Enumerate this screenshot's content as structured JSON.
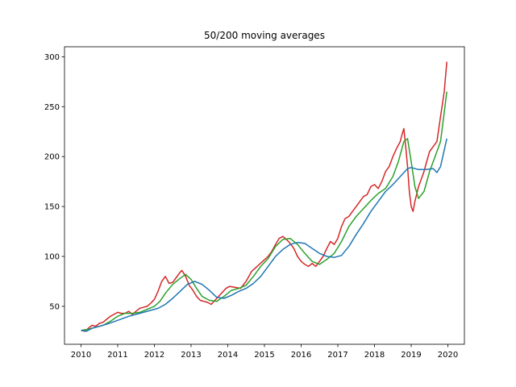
{
  "chart_data": {
    "type": "line",
    "title": "50/200 moving averages",
    "xlabel": "",
    "ylabel": "",
    "xlim": [
      2009.55,
      2020.45
    ],
    "ylim": [
      12,
      310
    ],
    "x_ticks": [
      2010,
      2011,
      2012,
      2013,
      2014,
      2015,
      2016,
      2017,
      2018,
      2019,
      2020
    ],
    "y_ticks": [
      50,
      100,
      150,
      200,
      250,
      300
    ],
    "grid": false,
    "legend": "none",
    "series": [
      {
        "color": "#d62728",
        "x": [
          2010.0,
          2010.1,
          2010.2,
          2010.3,
          2010.4,
          2010.5,
          2010.6,
          2010.7,
          2010.8,
          2010.9,
          2011.0,
          2011.1,
          2011.2,
          2011.3,
          2011.4,
          2011.5,
          2011.6,
          2011.7,
          2011.8,
          2011.9,
          2012.0,
          2012.1,
          2012.2,
          2012.3,
          2012.4,
          2012.5,
          2012.6,
          2012.7,
          2012.75,
          2012.85,
          2012.95,
          2013.05,
          2013.15,
          2013.25,
          2013.35,
          2013.45,
          2013.55,
          2013.65,
          2013.75,
          2013.85,
          2013.95,
          2014.05,
          2014.2,
          2014.35,
          2014.5,
          2014.65,
          2014.8,
          2014.95,
          2015.1,
          2015.2,
          2015.3,
          2015.4,
          2015.5,
          2015.6,
          2015.7,
          2015.8,
          2015.9,
          2016.0,
          2016.1,
          2016.2,
          2016.3,
          2016.4,
          2016.5,
          2016.6,
          2016.7,
          2016.8,
          2016.9,
          2017.0,
          2017.1,
          2017.2,
          2017.3,
          2017.4,
          2017.5,
          2017.6,
          2017.7,
          2017.8,
          2017.9,
          2018.0,
          2018.1,
          2018.2,
          2018.3,
          2018.4,
          2018.5,
          2018.6,
          2018.7,
          2018.75,
          2018.8,
          2018.85,
          2018.9,
          2018.95,
          2019.0,
          2019.05,
          2019.1,
          2019.2,
          2019.3,
          2019.35,
          2019.4,
          2019.5,
          2019.6,
          2019.7,
          2019.8,
          2019.9,
          2019.97
        ],
        "y": [
          26,
          25,
          28,
          31,
          30,
          33,
          34,
          37,
          40,
          42,
          44,
          43,
          43,
          45,
          42,
          45,
          48,
          49,
          50,
          53,
          57,
          65,
          75,
          80,
          73,
          74,
          79,
          84,
          86,
          80,
          71,
          66,
          60,
          56,
          55,
          54,
          52,
          56,
          60,
          64,
          68,
          70,
          69,
          68,
          75,
          85,
          90,
          95,
          100,
          105,
          112,
          118,
          120,
          117,
          113,
          108,
          100,
          95,
          92,
          90,
          93,
          90,
          95,
          100,
          108,
          115,
          112,
          118,
          130,
          138,
          140,
          145,
          150,
          155,
          160,
          162,
          170,
          172,
          168,
          175,
          185,
          190,
          200,
          208,
          215,
          222,
          228,
          210,
          190,
          165,
          150,
          145,
          155,
          170,
          180,
          185,
          192,
          205,
          210,
          215,
          240,
          265,
          295
        ]
      },
      {
        "color": "#2ca02c",
        "x": [
          2010.0,
          2010.2,
          2010.4,
          2010.6,
          2010.8,
          2011.0,
          2011.2,
          2011.4,
          2011.6,
          2011.8,
          2012.0,
          2012.15,
          2012.3,
          2012.5,
          2012.7,
          2012.85,
          2013.0,
          2013.15,
          2013.3,
          2013.5,
          2013.7,
          2013.9,
          2014.1,
          2014.3,
          2014.5,
          2014.7,
          2014.9,
          2015.1,
          2015.3,
          2015.5,
          2015.7,
          2015.9,
          2016.1,
          2016.3,
          2016.5,
          2016.7,
          2016.9,
          2017.1,
          2017.3,
          2017.5,
          2017.7,
          2017.9,
          2018.1,
          2018.3,
          2018.5,
          2018.65,
          2018.8,
          2018.9,
          2019.0,
          2019.1,
          2019.2,
          2019.35,
          2019.5,
          2019.65,
          2019.8,
          2019.97
        ],
        "y": [
          26,
          27,
          29,
          31,
          35,
          40,
          43,
          43,
          44,
          47,
          50,
          55,
          63,
          72,
          78,
          82,
          77,
          68,
          60,
          56,
          55,
          60,
          66,
          68,
          71,
          80,
          90,
          98,
          110,
          117,
          118,
          112,
          103,
          95,
          92,
          97,
          103,
          115,
          130,
          140,
          148,
          156,
          163,
          168,
          180,
          195,
          215,
          218,
          195,
          170,
          158,
          165,
          185,
          200,
          215,
          265
        ]
      },
      {
        "color": "#1f77b4",
        "x": [
          2010.0,
          2010.15,
          2010.3,
          2010.5,
          2010.7,
          2011.0,
          2011.3,
          2011.6,
          2011.9,
          2012.1,
          2012.3,
          2012.5,
          2012.7,
          2012.9,
          2013.1,
          2013.3,
          2013.5,
          2013.7,
          2013.9,
          2014.1,
          2014.3,
          2014.5,
          2014.7,
          2014.9,
          2015.1,
          2015.3,
          2015.5,
          2015.7,
          2015.9,
          2016.1,
          2016.3,
          2016.5,
          2016.7,
          2016.9,
          2017.1,
          2017.3,
          2017.5,
          2017.7,
          2017.9,
          2018.1,
          2018.3,
          2018.5,
          2018.7,
          2018.9,
          2019.0,
          2019.2,
          2019.4,
          2019.6,
          2019.7,
          2019.8,
          2019.97
        ],
        "y": [
          26,
          25,
          28,
          30,
          32,
          36,
          40,
          43,
          46,
          48,
          52,
          58,
          65,
          72,
          75,
          72,
          66,
          59,
          58,
          61,
          65,
          68,
          73,
          80,
          90,
          100,
          107,
          112,
          114,
          113,
          108,
          103,
          100,
          99,
          101,
          110,
          122,
          133,
          145,
          155,
          165,
          172,
          180,
          188,
          189,
          187,
          187,
          188,
          184,
          190,
          218
        ]
      }
    ]
  }
}
